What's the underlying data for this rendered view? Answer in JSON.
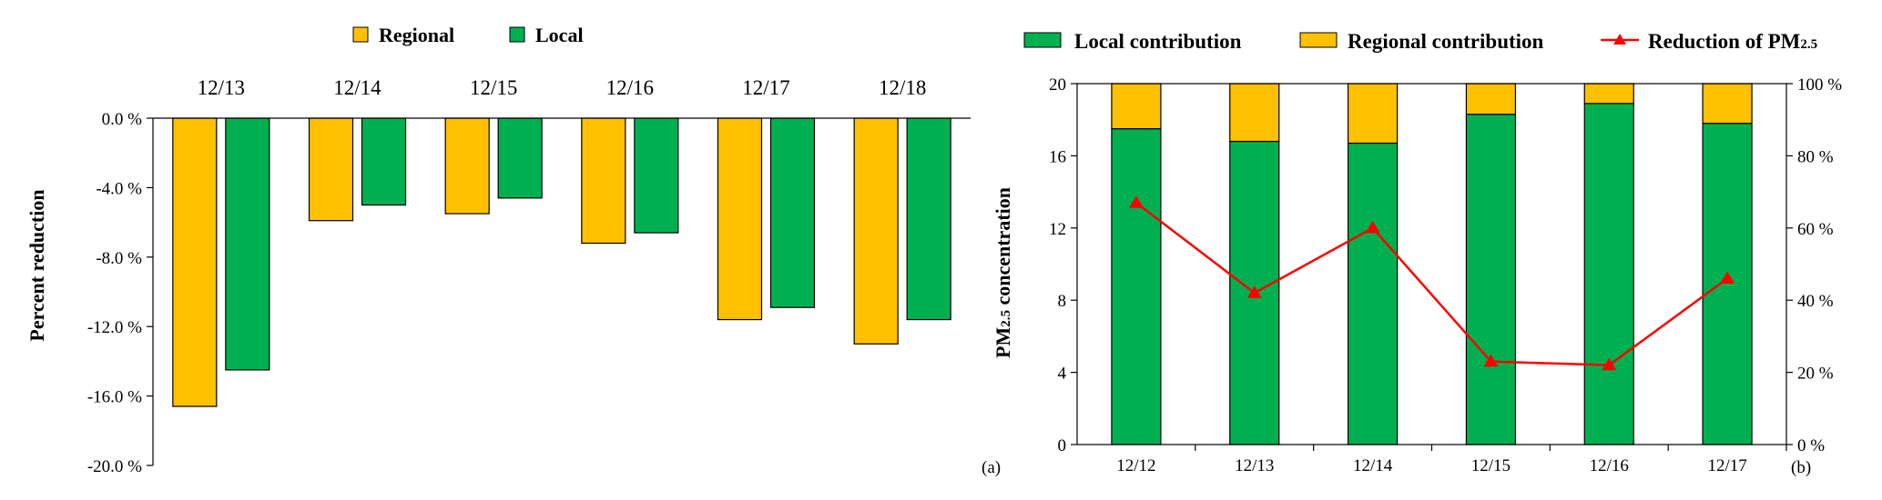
{
  "colors": {
    "regional": "#FFC000",
    "local": "#00B050",
    "reduction_line": "#FF0000",
    "axis": "#000000"
  },
  "chart_data": [
    {
      "panel_label": "(a)",
      "type": "bar",
      "orientation": "vertical-down",
      "categories": [
        "12/13",
        "12/14",
        "12/15",
        "12/16",
        "12/17",
        "12/18"
      ],
      "category_axis_position": "top",
      "series": [
        {
          "name": "Regional",
          "color_key": "regional",
          "values": [
            -16.6,
            -5.9,
            -5.5,
            -7.2,
            -11.6,
            -13.0
          ]
        },
        {
          "name": "Local",
          "color_key": "local",
          "values": [
            -14.5,
            -5.0,
            -4.6,
            -6.6,
            -10.9,
            -11.6
          ]
        }
      ],
      "ylabel": "Percent reduction",
      "ylim": [
        -20,
        0
      ],
      "yticks": [
        0,
        -4,
        -8,
        -12,
        -16,
        -20
      ],
      "ytick_labels": [
        "0.0 %",
        "-4.0 %",
        "-8.0 %",
        "-12.0 %",
        "-16.0 %",
        "-20.0 %"
      ],
      "legend_position": "top-center",
      "grid": false
    },
    {
      "panel_label": "(b)",
      "type": "bar",
      "stacked": true,
      "categories": [
        "12/12",
        "12/13",
        "12/14",
        "12/15",
        "12/16",
        "12/17"
      ],
      "series": [
        {
          "name": "Local contribution",
          "color_key": "local",
          "values": [
            17.5,
            16.8,
            16.7,
            18.3,
            18.9,
            17.8
          ]
        },
        {
          "name": "Regional contribution",
          "color_key": "regional",
          "values": [
            2.5,
            3.2,
            3.3,
            1.7,
            1.1,
            2.2
          ]
        }
      ],
      "line_series": {
        "name_prefix": "Reduction of PM",
        "name_sub": "2.5",
        "color_key": "reduction_line",
        "axis": "right",
        "values": [
          67,
          42,
          60,
          23,
          22,
          46
        ]
      },
      "ylabel_prefix": "PM",
      "ylabel_sub": "2.5",
      "ylabel_suffix": " concentration",
      "ylim": [
        0,
        20
      ],
      "yticks": [
        0,
        4,
        8,
        12,
        16,
        20
      ],
      "ytick_labels": [
        "0",
        "4",
        "8",
        "12",
        "16",
        "20"
      ],
      "y2lim": [
        0,
        100
      ],
      "y2ticks": [
        0,
        20,
        40,
        60,
        80,
        100
      ],
      "y2tick_labels": [
        "0 %",
        "20 %",
        "40 %",
        "60 %",
        "80 %",
        "100 %"
      ],
      "legend_position": "top",
      "grid": false
    }
  ]
}
